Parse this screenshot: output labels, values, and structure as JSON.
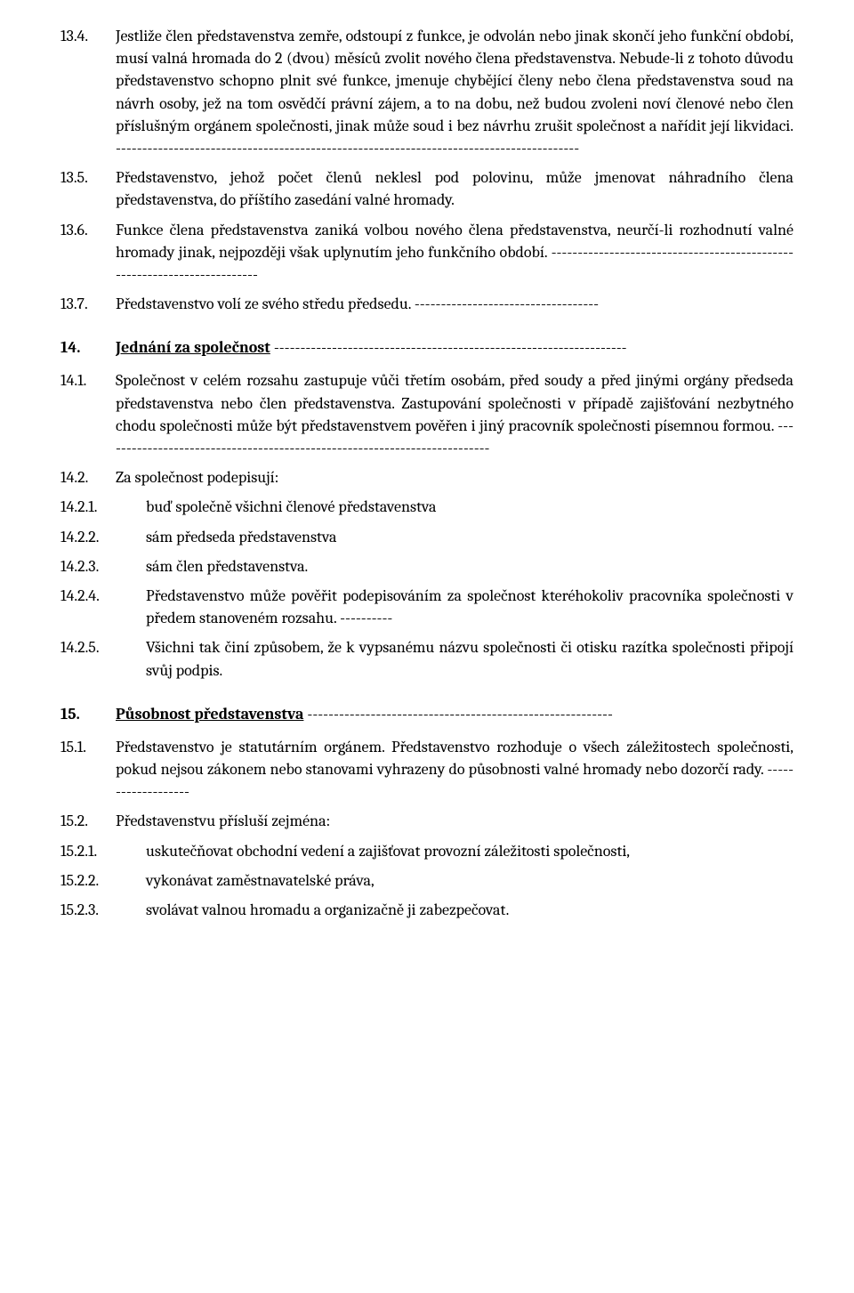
{
  "s13": {
    "n4": {
      "num": "13.4.",
      "text": "Jestliže člen představenstva zemře, odstoupí z funkce, je odvolán nebo jinak skončí jeho funkční období, musí valná hromada do 2 (dvou) měsíců zvolit nového člena představenstva. Nebude-li z tohoto důvodu představenstvo schopno plnit své funkce, jmenuje chybějící členy nebo člena představenstva soud na návrh osoby, jež na tom osvědčí právní zájem, a to na dobu, než budou zvoleni noví členové nebo člen příslušným orgánem společnosti, jinak může soud i bez návrhu zrušit společnost a nařídit její likvidaci. "
    },
    "n5": {
      "num": "13.5.",
      "text": "Představenstvo, jehož počet členů neklesl pod polovinu, může jmenovat náhradního člena představenstva, do příštího zasedání valné hromady."
    },
    "n6": {
      "num": "13.6.",
      "text": "Funkce člena představenstva zaniká volbou nového člena představenstva, neurčí-li rozhodnutí valné hromady jinak, nejpozději však uplynutím jeho funkčního období. "
    },
    "n7": {
      "num": "13.7.",
      "text": "Představenstvo volí ze svého středu předsedu. "
    }
  },
  "s14": {
    "heading_num": "14.",
    "heading_text": "Jednání za společnost ",
    "n1": {
      "num": "14.1.",
      "text": "Společnost v celém rozsahu zastupuje vůči třetím osobám, před soudy a před jinými orgány předseda představenstva nebo člen představenstva. Zastupování společnosti v případě zajišťování nezbytného chodu společnosti může být představenstvem pověřen i jiný pracovník společnosti písemnou formou. "
    },
    "n2": {
      "num": "14.2.",
      "text": "Za společnost podepisují:"
    },
    "n2_1": {
      "num": "14.2.1.",
      "text": "buď společně všichni členové představenstva"
    },
    "n2_2": {
      "num": "14.2.2.",
      "text": "sám předseda představenstva"
    },
    "n2_3": {
      "num": "14.2.3.",
      "text": "sám člen představenstva."
    },
    "n2_4": {
      "num": "14.2.4.",
      "text": "Představenstvo může pověřit podepisováním za společnost které­hokoliv pracovníka společnosti v předem stanoveném rozsahu. "
    },
    "n2_5": {
      "num": "14.2.5.",
      "text": "Všichni tak činí způsobem, že k vypsanému názvu společnosti či otisku razítka společnosti připojí svůj podpis."
    }
  },
  "s15": {
    "heading_num": "15.",
    "heading_text": "Působnost představenstva ",
    "n1": {
      "num": "15.1.",
      "text": "Představenstvo je statutárním orgánem. Představenstvo rozhoduje o všech záležitostech společnosti, pokud nejsou zákonem nebo stanovami vyhrazeny do působnosti valné hromady nebo dozorčí rady. "
    },
    "n2": {
      "num": "15.2.",
      "text": "Představenstvu přísluší zejména:"
    },
    "n2_1": {
      "num": "15.2.1.",
      "text": "uskutečňovat obchodní vedení a zajišťovat provozní záležitosti společnosti,"
    },
    "n2_2": {
      "num": "15.2.2.",
      "text": "vykonávat zaměstnavatelské práva,"
    },
    "n2_3": {
      "num": "15.2.3.",
      "text": "svolávat valnou hromadu a organizačně ji zabezpečovat."
    }
  },
  "dashes_full": "----------------------------------------------------------------------------------------",
  "dashes_med": "-------------------------------------------------------------------------",
  "dashes_short": "-----------------------------------",
  "dashes_tiny": "----------",
  "dashes_s14": "-------------------------------------------------------------------",
  "dashes_s15": "----------------------------------------------------------",
  "dashes_14_1": "--------------------------------------------------------------------------",
  "dashes_15_1": "-------------------"
}
